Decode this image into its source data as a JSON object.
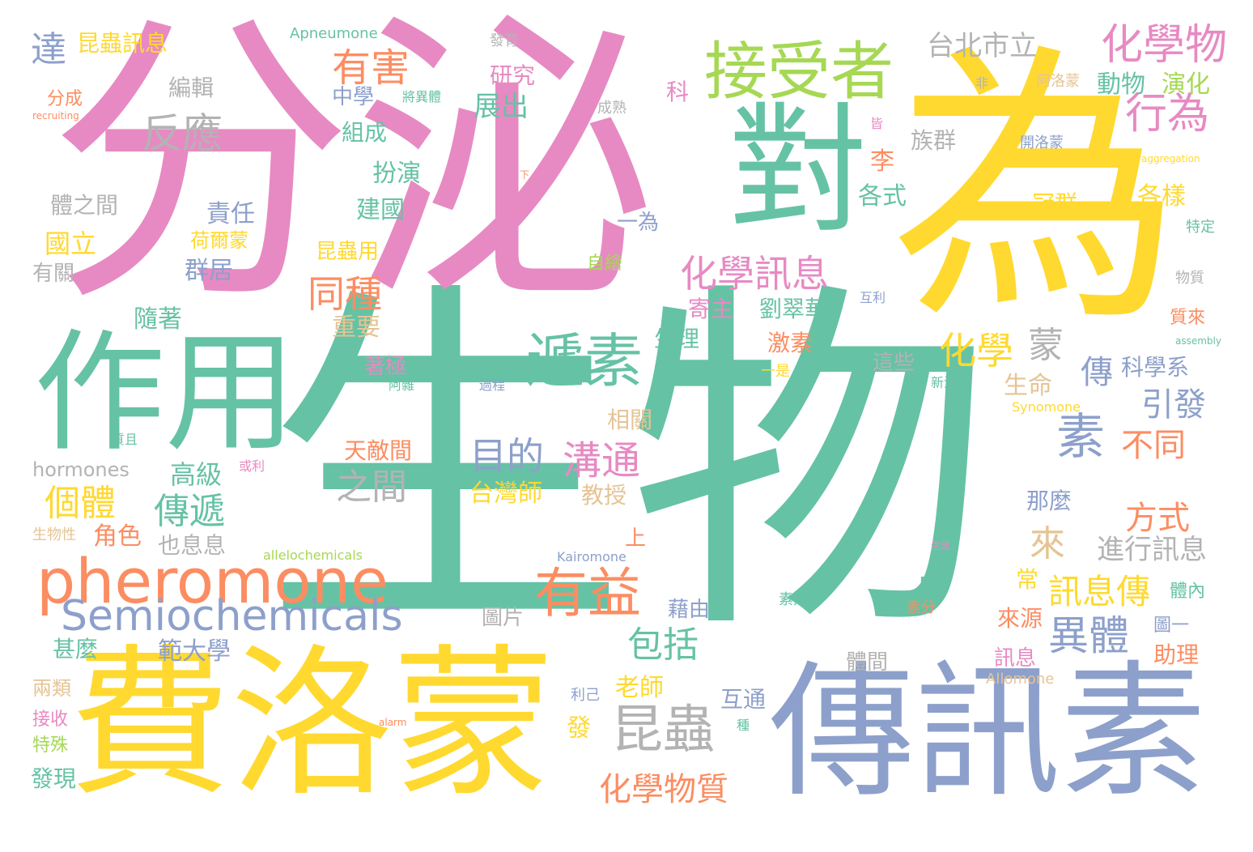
{
  "palette": {
    "green": "#66c2a5",
    "orange": "#fc8d62",
    "blue": "#8da0cb",
    "pink": "#e78ac3",
    "lime": "#a6d854",
    "yellow": "#ffd92f",
    "tan": "#e5c494",
    "gray": "#b3b3b3"
  },
  "words": [
    "生物",
    "分泌",
    "為",
    "費洛蒙",
    "傳訊素",
    "作用",
    "對",
    "pheromone",
    "接受者",
    "化學物",
    "遞素",
    "有益",
    "Semiochemicals",
    "素",
    "行為",
    "化學",
    "昆蟲",
    "異體",
    "反應",
    "有害",
    "台北市立",
    "化學訊息",
    "目的",
    "溝通",
    "個體",
    "傳遞",
    "化學物質",
    "達",
    "同種",
    "包括",
    "之間",
    "不同",
    "方式",
    "引發",
    "訊息傳",
    "進行訊息",
    "蒙",
    "傳",
    "動物",
    "演化",
    "展出",
    "中學",
    "編輯",
    "研究",
    "昆蟲訊息",
    "Apneumone",
    "扮演",
    "建國",
    "責任",
    "國立",
    "群居",
    "隨著",
    "重要",
    "高級",
    "角色",
    "範大學",
    "台灣師",
    "老師",
    "互通",
    "發",
    "發現",
    "hormones",
    "各式",
    "各樣",
    "冠群",
    "族群",
    "科學系",
    "生命",
    "劉翠華",
    "寄主",
    "激素",
    "生理",
    "這些",
    "著極",
    "天敵間",
    "教授",
    "相關",
    "那麼",
    "科",
    "李",
    "一為",
    "上",
    "中",
    "常",
    "體內",
    "圖一",
    "助理",
    "來源",
    "訊息",
    "體間",
    "圖片",
    "藉由",
    "甚麼",
    "兩類",
    "接收",
    "特殊",
    "來",
    "也息息",
    "有關",
    "體之間",
    "昆蟲用",
    "荷爾蒙",
    "自繪",
    "組成",
    "分成",
    "成熟",
    "發育",
    "將異體",
    "阿洛蒙",
    "開洛蒙",
    "物質",
    "特定",
    "質來",
    "新洛蒙",
    "Synomone",
    "Kairomone",
    "Allomone",
    "allelochemicals",
    "aggregation",
    "assembly",
    "recruiting",
    "alarm",
    "生物性",
    "素是",
    "素分",
    "過程",
    "互利",
    "利己",
    "種",
    "非",
    "皆",
    "下",
    "一是",
    "質且",
    "或利",
    "生活",
    "阿雜"
  ]
}
